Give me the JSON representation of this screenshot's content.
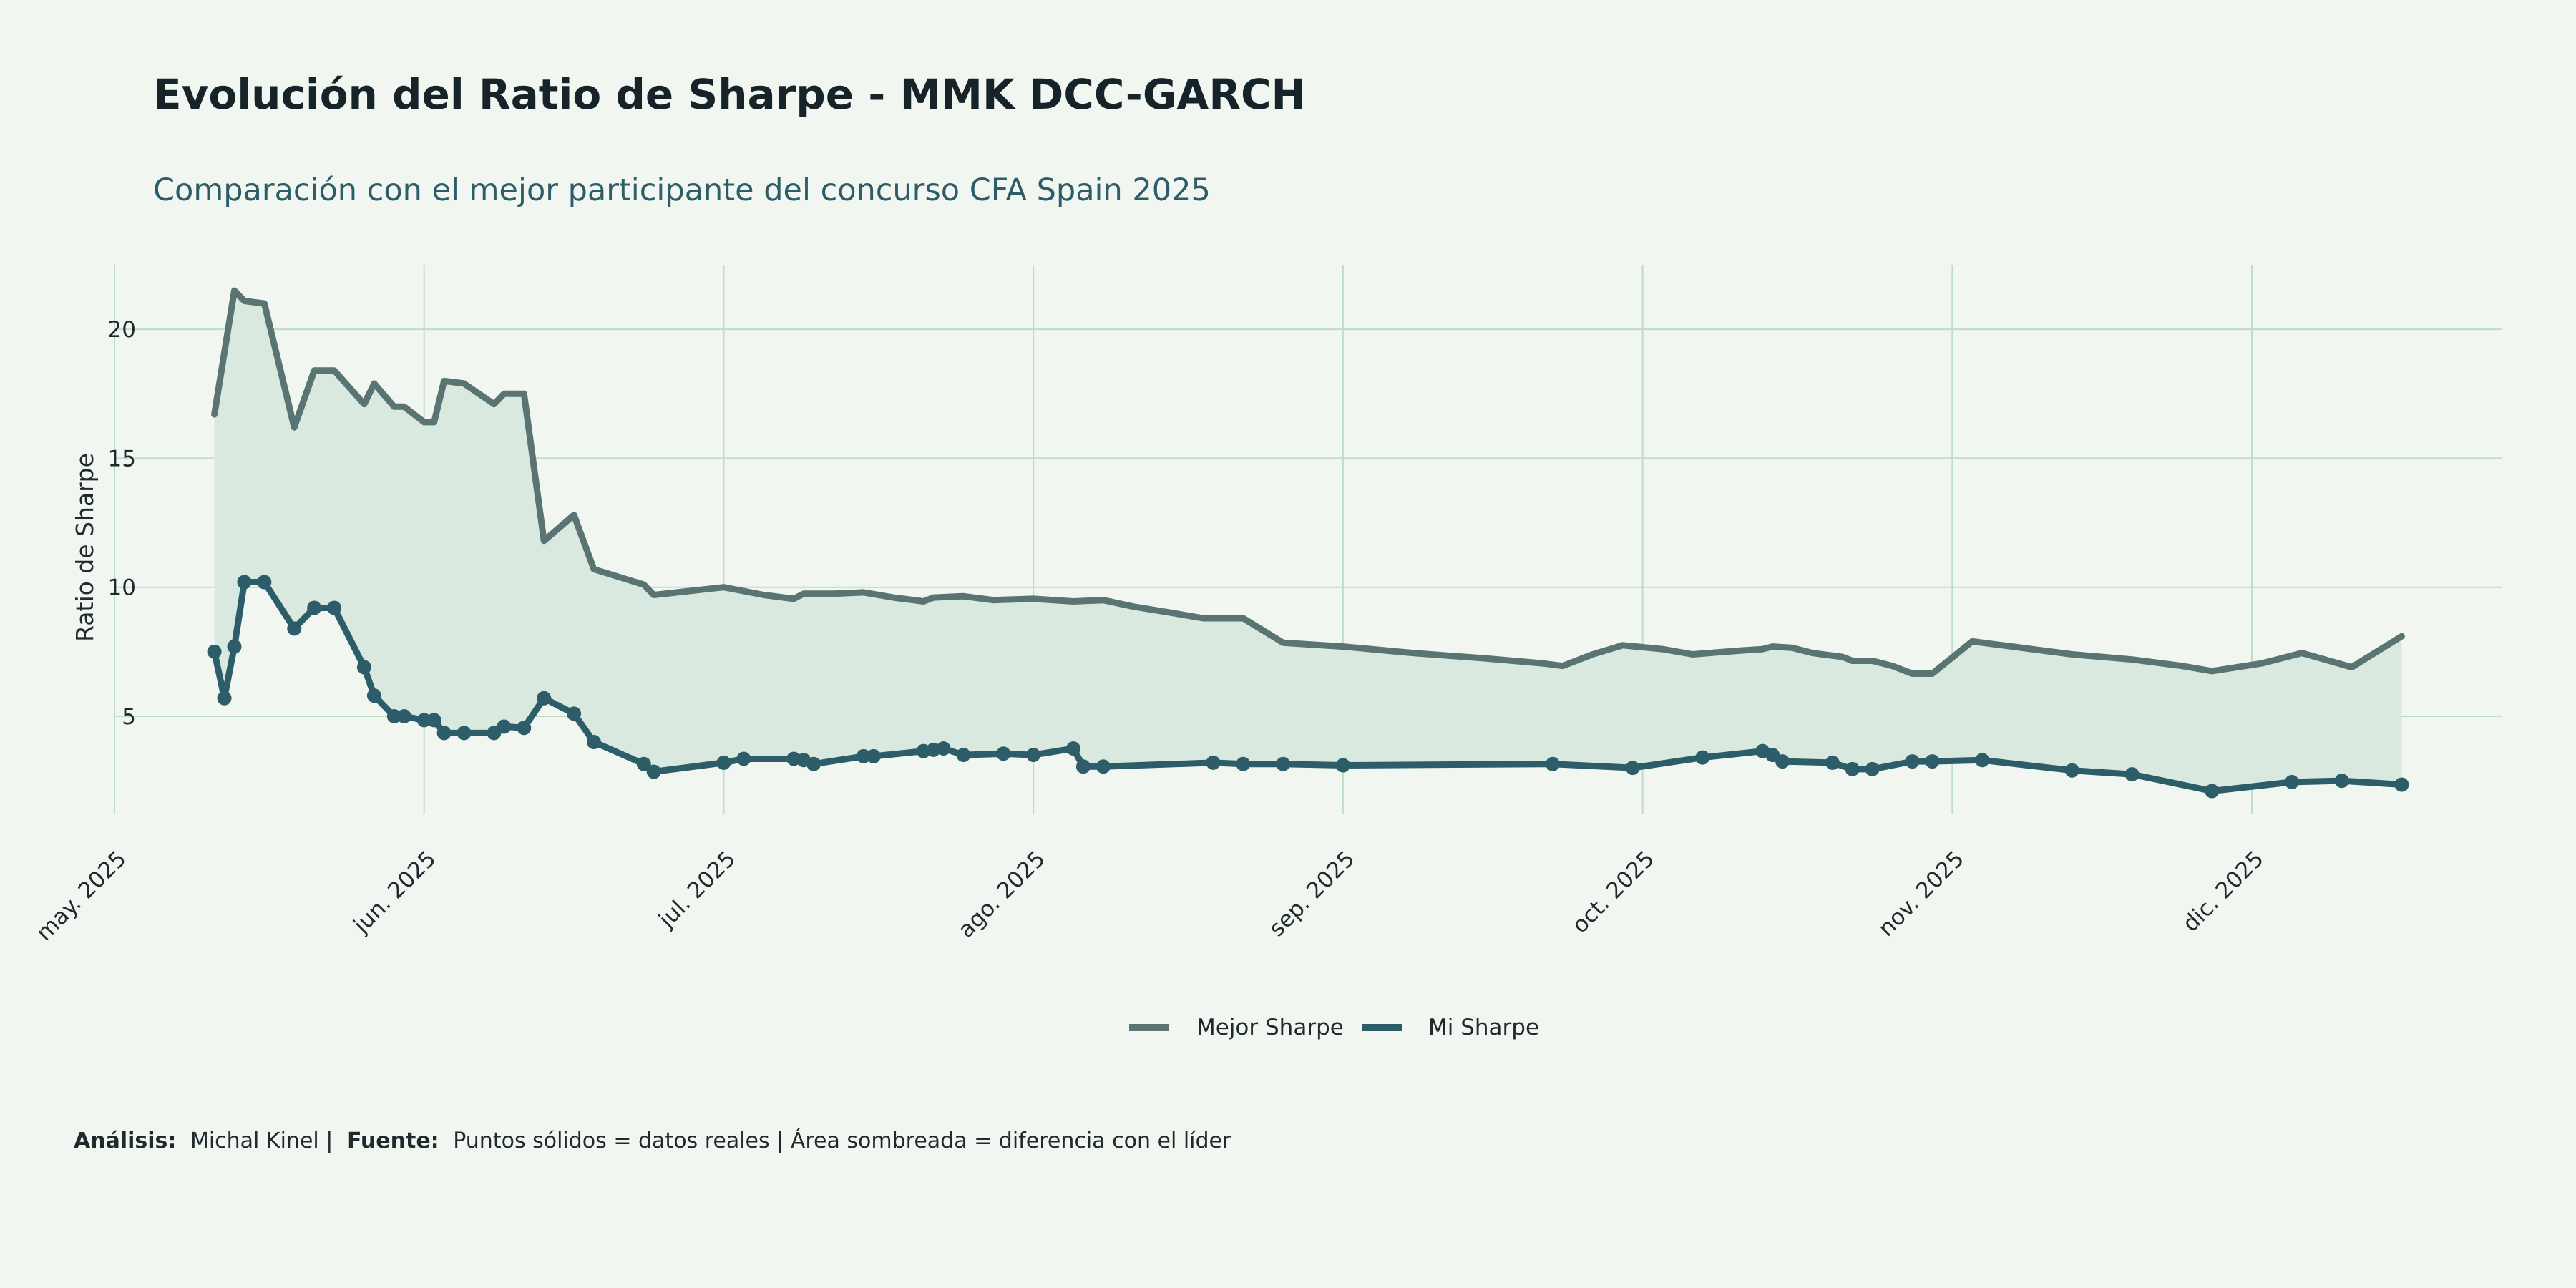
{
  "chart_data": {
    "type": "line",
    "title": "Evolución del Ratio de Sharpe - MMK DCC-GARCH",
    "subtitle": "Comparación con el mejor participante del concurso CFA Spain 2025",
    "ylabel": "Ratio de Sharpe",
    "xlabel": "",
    "x_axis": {
      "type": "date",
      "range": [
        "2025-05-01",
        "2025-12-26"
      ],
      "ticks": [
        {
          "date": "2025-05-01",
          "label": "may. 2025"
        },
        {
          "date": "2025-06-01",
          "label": "jun. 2025"
        },
        {
          "date": "2025-07-01",
          "label": "jul. 2025"
        },
        {
          "date": "2025-08-01",
          "label": "ago. 2025"
        },
        {
          "date": "2025-09-01",
          "label": "sep. 2025"
        },
        {
          "date": "2025-10-01",
          "label": "oct. 2025"
        },
        {
          "date": "2025-11-01",
          "label": "nov. 2025"
        },
        {
          "date": "2025-12-01",
          "label": "dic. 2025"
        }
      ]
    },
    "y_axis": {
      "range": [
        1.2,
        22.5
      ],
      "ticks": [
        {
          "value": 5,
          "label": "5"
        },
        {
          "value": 10,
          "label": "10"
        },
        {
          "value": 15,
          "label": "15"
        },
        {
          "value": 20,
          "label": "20"
        }
      ]
    },
    "grid": true,
    "legend": {
      "position": "bottom"
    },
    "shaded_area": "difference between Mejor Sharpe and Mi Sharpe",
    "colors": {
      "background": "#f1f6f1",
      "mejor": "#5a7474",
      "mi": "#2c5d68",
      "fill": "#d9e9e0",
      "grid": "#bfdccb"
    },
    "series": [
      {
        "key": "mejor",
        "name": "Mejor Sharpe",
        "markers": false,
        "points": [
          [
            "2025-05-11",
            16.7
          ],
          [
            "2025-05-13",
            21.5
          ],
          [
            "2025-05-14",
            21.1
          ],
          [
            "2025-05-16",
            21.0
          ],
          [
            "2025-05-19",
            16.2
          ],
          [
            "2025-05-21",
            18.4
          ],
          [
            "2025-05-23",
            18.4
          ],
          [
            "2025-05-26",
            17.1
          ],
          [
            "2025-05-27",
            17.9
          ],
          [
            "2025-05-29",
            17.0
          ],
          [
            "2025-05-30",
            17.0
          ],
          [
            "2025-06-01",
            16.4
          ],
          [
            "2025-06-02",
            16.4
          ],
          [
            "2025-06-03",
            18.0
          ],
          [
            "2025-06-05",
            17.9
          ],
          [
            "2025-06-08",
            17.1
          ],
          [
            "2025-06-09",
            17.5
          ],
          [
            "2025-06-11",
            17.5
          ],
          [
            "2025-06-13",
            11.8
          ],
          [
            "2025-06-16",
            12.8
          ],
          [
            "2025-06-18",
            10.7
          ],
          [
            "2025-06-23",
            10.1
          ],
          [
            "2025-06-24",
            9.7
          ],
          [
            "2025-07-01",
            10.0
          ],
          [
            "2025-07-05",
            9.7
          ],
          [
            "2025-07-08",
            9.55
          ],
          [
            "2025-07-09",
            9.75
          ],
          [
            "2025-07-12",
            9.75
          ],
          [
            "2025-07-15",
            9.8
          ],
          [
            "2025-07-18",
            9.6
          ],
          [
            "2025-07-21",
            9.45
          ],
          [
            "2025-07-22",
            9.6
          ],
          [
            "2025-07-25",
            9.65
          ],
          [
            "2025-07-28",
            9.5
          ],
          [
            "2025-08-01",
            9.55
          ],
          [
            "2025-08-05",
            9.45
          ],
          [
            "2025-08-08",
            9.5
          ],
          [
            "2025-08-11",
            9.25
          ],
          [
            "2025-08-15",
            9.0
          ],
          [
            "2025-08-18",
            8.8
          ],
          [
            "2025-08-22",
            8.8
          ],
          [
            "2025-08-26",
            7.85
          ],
          [
            "2025-09-01",
            7.7
          ],
          [
            "2025-09-08",
            7.45
          ],
          [
            "2025-09-15",
            7.25
          ],
          [
            "2025-09-21",
            7.05
          ],
          [
            "2025-09-23",
            6.95
          ],
          [
            "2025-09-26",
            7.4
          ],
          [
            "2025-09-29",
            7.75
          ],
          [
            "2025-10-03",
            7.6
          ],
          [
            "2025-10-06",
            7.4
          ],
          [
            "2025-10-11",
            7.55
          ],
          [
            "2025-10-13",
            7.6
          ],
          [
            "2025-10-14",
            7.7
          ],
          [
            "2025-10-16",
            7.65
          ],
          [
            "2025-10-18",
            7.45
          ],
          [
            "2025-10-21",
            7.3
          ],
          [
            "2025-10-22",
            7.15
          ],
          [
            "2025-10-24",
            7.15
          ],
          [
            "2025-10-26",
            6.95
          ],
          [
            "2025-10-28",
            6.65
          ],
          [
            "2025-10-30",
            6.65
          ],
          [
            "2025-11-03",
            7.9
          ],
          [
            "2025-11-07",
            7.7
          ],
          [
            "2025-11-13",
            7.4
          ],
          [
            "2025-11-19",
            7.2
          ],
          [
            "2025-11-24",
            6.95
          ],
          [
            "2025-11-27",
            6.75
          ],
          [
            "2025-12-02",
            7.05
          ],
          [
            "2025-12-06",
            7.45
          ],
          [
            "2025-12-11",
            6.9
          ],
          [
            "2025-12-16",
            8.1
          ]
        ]
      },
      {
        "key": "mi",
        "name": "Mi Sharpe",
        "markers": true,
        "points": [
          [
            "2025-05-11",
            7.5
          ],
          [
            "2025-05-12",
            5.7
          ],
          [
            "2025-05-13",
            7.7
          ],
          [
            "2025-05-14",
            10.2
          ],
          [
            "2025-05-16",
            10.2
          ],
          [
            "2025-05-19",
            8.4
          ],
          [
            "2025-05-21",
            9.2
          ],
          [
            "2025-05-23",
            9.2
          ],
          [
            "2025-05-26",
            6.9
          ],
          [
            "2025-05-27",
            5.8
          ],
          [
            "2025-05-29",
            5.0
          ],
          [
            "2025-05-30",
            5.0
          ],
          [
            "2025-06-01",
            4.85
          ],
          [
            "2025-06-02",
            4.85
          ],
          [
            "2025-06-03",
            4.35
          ],
          [
            "2025-06-05",
            4.35
          ],
          [
            "2025-06-08",
            4.35
          ],
          [
            "2025-06-09",
            4.6
          ],
          [
            "2025-06-11",
            4.55
          ],
          [
            "2025-06-13",
            5.7
          ],
          [
            "2025-06-16",
            5.1
          ],
          [
            "2025-06-18",
            4.0
          ],
          [
            "2025-06-23",
            3.15
          ],
          [
            "2025-06-24",
            2.85
          ],
          [
            "2025-07-01",
            3.2
          ],
          [
            "2025-07-03",
            3.35
          ],
          [
            "2025-07-08",
            3.35
          ],
          [
            "2025-07-09",
            3.3
          ],
          [
            "2025-07-10",
            3.15
          ],
          [
            "2025-07-15",
            3.45
          ],
          [
            "2025-07-16",
            3.45
          ],
          [
            "2025-07-21",
            3.65
          ],
          [
            "2025-07-22",
            3.7
          ],
          [
            "2025-07-23",
            3.75
          ],
          [
            "2025-07-25",
            3.5
          ],
          [
            "2025-07-29",
            3.55
          ],
          [
            "2025-08-01",
            3.5
          ],
          [
            "2025-08-05",
            3.75
          ],
          [
            "2025-08-06",
            3.05
          ],
          [
            "2025-08-08",
            3.05
          ],
          [
            "2025-08-19",
            3.2
          ],
          [
            "2025-08-22",
            3.15
          ],
          [
            "2025-08-26",
            3.15
          ],
          [
            "2025-09-01",
            3.1
          ],
          [
            "2025-09-22",
            3.15
          ],
          [
            "2025-09-30",
            3.0
          ],
          [
            "2025-10-07",
            3.4
          ],
          [
            "2025-10-13",
            3.65
          ],
          [
            "2025-10-14",
            3.5
          ],
          [
            "2025-10-15",
            3.25
          ],
          [
            "2025-10-20",
            3.2
          ],
          [
            "2025-10-22",
            2.95
          ],
          [
            "2025-10-24",
            2.95
          ],
          [
            "2025-10-28",
            3.25
          ],
          [
            "2025-10-30",
            3.25
          ],
          [
            "2025-11-04",
            3.3
          ],
          [
            "2025-11-13",
            2.9
          ],
          [
            "2025-11-19",
            2.75
          ],
          [
            "2025-11-27",
            2.1
          ],
          [
            "2025-12-05",
            2.45
          ],
          [
            "2025-12-10",
            2.5
          ],
          [
            "2025-12-16",
            2.35
          ]
        ]
      }
    ]
  },
  "caption": {
    "analysis_label": "Análisis:",
    "analysis_value": "Michal Kinel |",
    "source_label": "Fuente:",
    "source_value": "Puntos sólidos = datos reales | Área sombreada = diferencia con el líder"
  }
}
